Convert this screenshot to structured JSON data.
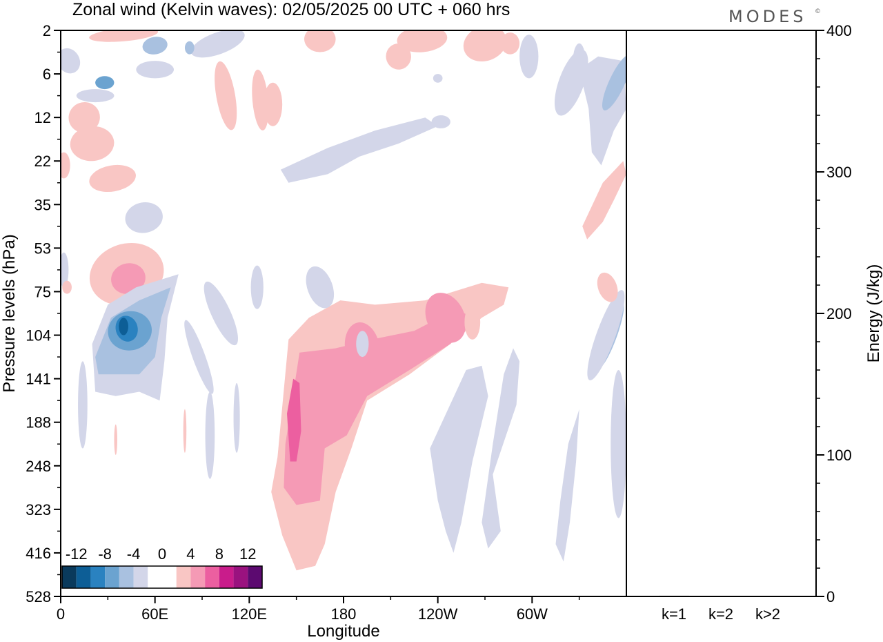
{
  "title": "Zonal wind (Kelvin waves):  02/05/2025  00 UTC  + 060 hrs",
  "brand": "MODES",
  "brand_mark": "©",
  "chart_data": [
    {
      "type": "heatmap",
      "title": "Zonal wind (Kelvin waves):  02/05/2025  00 UTC  + 060 hrs",
      "xlabel": "Longitude",
      "ylabel": "Pressure levels (hPa)",
      "x_ticks": [
        "0",
        "60E",
        "120E",
        "180",
        "120W",
        "60W"
      ],
      "x_tick_degrees": [
        0,
        60,
        120,
        180,
        240,
        300
      ],
      "xlim": [
        0,
        360
      ],
      "y_ticks": [
        "2",
        "6",
        "12",
        "22",
        "35",
        "53",
        "75",
        "104",
        "141",
        "188",
        "248",
        "323",
        "416",
        "528"
      ],
      "y_scale": "level-index (top 2 hPa, bottom 528 hPa)",
      "colorbar": {
        "tick_labels": [
          "-12",
          "-8",
          "-4",
          "0",
          "4",
          "8",
          "12"
        ],
        "colors": [
          "#0a3a5c",
          "#0d5e96",
          "#2a82c0",
          "#6ba3d0",
          "#a9c1e0",
          "#d3d6e9",
          "#ffffff",
          "#ffffff",
          "#f9c6c4",
          "#f59ab5",
          "#ec5fa0",
          "#c91c8b",
          "#9a127f",
          "#5c0a70"
        ]
      },
      "features": [
        {
          "sign": "negative",
          "peak": "-12",
          "lon_range": [
            20,
            75
          ],
          "level_range": [
            "75",
            "141"
          ]
        },
        {
          "sign": "positive",
          "peak": "8",
          "lon_range": [
            145,
            285
          ],
          "level_range": [
            "75",
            "323"
          ]
        },
        {
          "sign": "positive",
          "peak": "8",
          "lon_range": [
            20,
            65
          ],
          "level_range": [
            "53",
            "104"
          ]
        },
        {
          "sign": "negative",
          "peak": "-4",
          "lon_range": [
            235,
            290
          ],
          "level_range": [
            "104",
            "416"
          ]
        },
        {
          "sign": "negative",
          "peak": "-8",
          "lon_range": [
            340,
            360
          ],
          "level_range": [
            "6",
            "35"
          ]
        },
        {
          "sign": "positive",
          "peak": "4",
          "lon_range": [
            330,
            360
          ],
          "level_range": [
            "22",
            "53"
          ]
        }
      ]
    },
    {
      "type": "bar",
      "ylabel": "Energy (J/kg)",
      "ylim": [
        0,
        400
      ],
      "y_ticks": [
        "0",
        "100",
        "200",
        "300",
        "400"
      ],
      "categories": [
        "k=1",
        "k=2",
        "k>2"
      ],
      "values": [
        0.5,
        0.1,
        0.3
      ]
    }
  ]
}
